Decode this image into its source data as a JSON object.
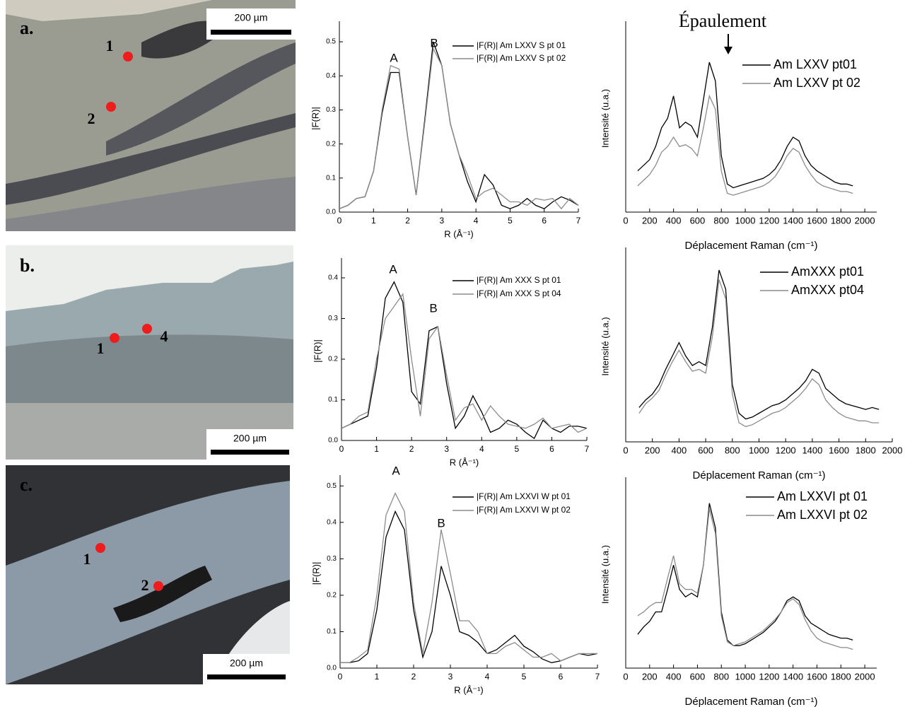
{
  "panels": [
    {
      "label": "a.",
      "scale": "200 µm",
      "points": [
        "1",
        "2"
      ]
    },
    {
      "label": "b.",
      "scale": "200 µm",
      "points": [
        "1",
        "4"
      ]
    },
    {
      "label": "c.",
      "scale": "200 µm",
      "points": [
        "1",
        "2"
      ]
    }
  ],
  "chart_data": [
    {
      "type": "line",
      "x_label": "R (Å⁻¹)",
      "y_label": "|F(R)|",
      "annotations": [
        "A",
        "B"
      ],
      "xlim": [
        0,
        7
      ],
      "xticks": [
        0,
        1,
        2,
        3,
        4,
        5,
        6,
        7
      ],
      "ylim": [
        0,
        0.55
      ],
      "yticks": [
        {
          "value": 0,
          "label": "0.0"
        },
        0.1,
        0.2,
        0.3,
        0.4,
        0.5
      ],
      "x": [
        0,
        0.25,
        0.5,
        0.75,
        1,
        1.25,
        1.5,
        1.75,
        2,
        2.25,
        2.5,
        2.75,
        3,
        3.25,
        3.5,
        3.75,
        4,
        4.25,
        4.5,
        4.75,
        5,
        5.25,
        5.5,
        5.75,
        6,
        6.25,
        6.5,
        6.75,
        7
      ],
      "series": [
        {
          "name": "|F(R)|  Am LXXV S pt 01",
          "color": "#000000",
          "values": [
            0.01,
            0.02,
            0.04,
            0.045,
            0.12,
            0.29,
            0.41,
            0.41,
            0.22,
            0.05,
            0.27,
            0.5,
            0.43,
            0.26,
            0.17,
            0.09,
            0.03,
            0.11,
            0.08,
            0.02,
            0.01,
            0.02,
            0.04,
            0.02,
            0.01,
            0.03,
            0.045,
            0.035,
            0.02
          ]
        },
        {
          "name": "|F(R)|  Am LXXV S pt 02",
          "color": "#8c8c8c",
          "values": [
            0.01,
            0.02,
            0.04,
            0.045,
            0.12,
            0.3,
            0.43,
            0.42,
            0.22,
            0.05,
            0.26,
            0.48,
            0.43,
            0.26,
            0.17,
            0.11,
            0.04,
            0.06,
            0.07,
            0.05,
            0.03,
            0.03,
            0.02,
            0.04,
            0.035,
            0.04,
            0.01,
            0.04,
            0.02
          ]
        }
      ]
    },
    {
      "type": "line",
      "x_label": "Déplacement Raman (cm⁻¹)",
      "y_label": "Intensité (u.a.)",
      "annotations": [
        "Épaulement"
      ],
      "xlim": [
        0,
        2100
      ],
      "xticks": [
        0,
        200,
        400,
        600,
        800,
        1000,
        1200,
        1400,
        1600,
        1800,
        2000
      ],
      "ylim": [
        0,
        100
      ],
      "x": [
        100,
        150,
        200,
        250,
        300,
        350,
        400,
        450,
        500,
        550,
        600,
        650,
        700,
        750,
        800,
        850,
        900,
        950,
        1000,
        1050,
        1100,
        1150,
        1200,
        1250,
        1300,
        1350,
        1400,
        1450,
        1500,
        1550,
        1600,
        1650,
        1700,
        1750,
        1800,
        1850,
        1900
      ],
      "series": [
        {
          "name": "Am LXXV pt01",
          "color": "#000000",
          "values": [
            22,
            25,
            28,
            35,
            45,
            50,
            62,
            45,
            48,
            46,
            40,
            60,
            80,
            70,
            30,
            15,
            13,
            14,
            15,
            16,
            17,
            18,
            20,
            23,
            28,
            35,
            40,
            38,
            30,
            25,
            22,
            20,
            18,
            16,
            15,
            15,
            14
          ]
        },
        {
          "name": "Am LXXV pt 02",
          "color": "#8c8c8c",
          "values": [
            14,
            17,
            20,
            25,
            32,
            35,
            40,
            35,
            36,
            34,
            30,
            45,
            62,
            55,
            22,
            10,
            9,
            10,
            11,
            12,
            13,
            14,
            16,
            19,
            24,
            30,
            34,
            32,
            25,
            20,
            16,
            14,
            13,
            12,
            11,
            11,
            10
          ]
        }
      ]
    },
    {
      "type": "line",
      "x_label": "R (Å⁻¹)",
      "y_label": "|F(R)|",
      "annotations": [
        "A",
        "B"
      ],
      "xlim": [
        0,
        7
      ],
      "xticks": [
        0,
        1,
        2,
        3,
        4,
        5,
        6,
        7
      ],
      "ylim": [
        0,
        0.44
      ],
      "yticks": [
        {
          "value": 0,
          "label": "0.0"
        },
        0.1,
        0.2,
        0.3,
        0.4
      ],
      "x": [
        0,
        0.25,
        0.5,
        0.75,
        1,
        1.25,
        1.5,
        1.75,
        2,
        2.25,
        2.5,
        2.75,
        3,
        3.25,
        3.5,
        3.75,
        4,
        4.25,
        4.5,
        4.75,
        5,
        5.25,
        5.5,
        5.75,
        6,
        6.25,
        6.5,
        6.75,
        7
      ],
      "series": [
        {
          "name": "|F(R)|  Am XXX S pt 01",
          "color": "#000000",
          "values": [
            0.03,
            0.04,
            0.05,
            0.06,
            0.18,
            0.35,
            0.39,
            0.34,
            0.12,
            0.09,
            0.27,
            0.28,
            0.14,
            0.03,
            0.06,
            0.11,
            0.07,
            0.02,
            0.03,
            0.05,
            0.04,
            0.02,
            0.005,
            0.05,
            0.03,
            0.02,
            0.035,
            0.035,
            0.03
          ]
        },
        {
          "name": "|F(R)|  Am XXX S pt 04",
          "color": "#8c8c8c",
          "values": [
            0.03,
            0.04,
            0.06,
            0.07,
            0.2,
            0.3,
            0.33,
            0.36,
            0.2,
            0.06,
            0.25,
            0.28,
            0.16,
            0.05,
            0.08,
            0.09,
            0.05,
            0.085,
            0.06,
            0.04,
            0.035,
            0.03,
            0.04,
            0.055,
            0.03,
            0.035,
            0.04,
            0.02,
            0.03
          ]
        }
      ]
    },
    {
      "type": "line",
      "x_label": "Déplacement Raman (cm⁻¹)",
      "y_label": "Intensité (u.a.)",
      "xlim": [
        0,
        2000
      ],
      "xticks": [
        0,
        200,
        400,
        600,
        800,
        1000,
        1200,
        1400,
        1600,
        1800,
        2000
      ],
      "ylim": [
        0,
        100
      ],
      "x": [
        100,
        150,
        200,
        250,
        300,
        350,
        400,
        450,
        500,
        550,
        600,
        650,
        700,
        750,
        800,
        850,
        900,
        950,
        1000,
        1050,
        1100,
        1150,
        1200,
        1250,
        1300,
        1350,
        1400,
        1450,
        1500,
        1550,
        1600,
        1650,
        1700,
        1750,
        1800,
        1850,
        1900
      ],
      "series": [
        {
          "name": "AmXXX pt01",
          "color": "#000000",
          "values": [
            18,
            22,
            25,
            30,
            38,
            45,
            52,
            45,
            40,
            42,
            40,
            60,
            90,
            80,
            30,
            15,
            12,
            13,
            15,
            17,
            19,
            20,
            22,
            25,
            28,
            32,
            38,
            36,
            28,
            25,
            22,
            20,
            19,
            18,
            17,
            18,
            17
          ]
        },
        {
          "name": "AmXXX pt04",
          "color": "#8c8c8c",
          "values": [
            15,
            20,
            23,
            27,
            35,
            42,
            48,
            42,
            37,
            38,
            36,
            55,
            85,
            75,
            25,
            10,
            8,
            9,
            11,
            13,
            15,
            16,
            18,
            21,
            24,
            28,
            33,
            30,
            22,
            18,
            15,
            13,
            12,
            11,
            11,
            10,
            10
          ]
        }
      ]
    },
    {
      "type": "line",
      "x_label": "R (Å⁻¹)",
      "y_label": "|F(R)|",
      "annotations": [
        "A",
        "B"
      ],
      "xlim": [
        0,
        7
      ],
      "xticks": [
        0,
        1,
        2,
        3,
        4,
        5,
        6,
        7
      ],
      "ylim": [
        0,
        0.52
      ],
      "yticks": [
        {
          "value": 0,
          "label": "0.0"
        },
        0.1,
        0.2,
        0.3,
        0.4,
        0.5
      ],
      "x": [
        0,
        0.25,
        0.5,
        0.75,
        1,
        1.25,
        1.5,
        1.75,
        2,
        2.25,
        2.5,
        2.75,
        3,
        3.25,
        3.5,
        3.75,
        4,
        4.25,
        4.5,
        4.75,
        5,
        5.25,
        5.5,
        5.75,
        6,
        6.25,
        6.5,
        6.75,
        7
      ],
      "series": [
        {
          "name": "|F(R)| Am LXXVI W pt 01",
          "color": "#000000",
          "values": [
            0.015,
            0.015,
            0.02,
            0.04,
            0.16,
            0.36,
            0.43,
            0.38,
            0.16,
            0.03,
            0.1,
            0.28,
            0.2,
            0.1,
            0.09,
            0.07,
            0.04,
            0.05,
            0.07,
            0.09,
            0.06,
            0.045,
            0.025,
            0.015,
            0.02,
            0.03,
            0.04,
            0.035,
            0.04
          ]
        },
        {
          "name": "|F(R)|  Am LXXVI W pt 02",
          "color": "#8c8c8c",
          "values": [
            0.015,
            0.015,
            0.03,
            0.05,
            0.2,
            0.42,
            0.48,
            0.43,
            0.18,
            0.04,
            0.18,
            0.38,
            0.26,
            0.13,
            0.13,
            0.1,
            0.04,
            0.04,
            0.06,
            0.07,
            0.05,
            0.03,
            0.03,
            0.04,
            0.02,
            0.03,
            0.04,
            0.04,
            0.04
          ]
        }
      ]
    },
    {
      "type": "line",
      "x_label": "Déplacement Raman (cm⁻¹)",
      "y_label": "Intensité (u.a.)",
      "xlim": [
        0,
        2100
      ],
      "xticks": [
        0,
        200,
        400,
        600,
        800,
        1000,
        1200,
        1400,
        1600,
        1800,
        2000
      ],
      "ylim": [
        0,
        100
      ],
      "x": [
        100,
        150,
        200,
        250,
        300,
        350,
        400,
        450,
        500,
        550,
        600,
        650,
        700,
        750,
        800,
        850,
        900,
        950,
        1000,
        1050,
        1100,
        1150,
        1200,
        1250,
        1300,
        1350,
        1400,
        1450,
        1500,
        1550,
        1600,
        1650,
        1700,
        1750,
        1800,
        1850,
        1900
      ],
      "series": [
        {
          "name": "Am LXXVI pt 01",
          "color": "#000000",
          "values": [
            18,
            22,
            25,
            30,
            30,
            42,
            55,
            42,
            38,
            40,
            38,
            55,
            88,
            75,
            30,
            15,
            12,
            12,
            13,
            15,
            17,
            19,
            22,
            25,
            30,
            36,
            38,
            36,
            28,
            24,
            22,
            20,
            18,
            17,
            16,
            16,
            15
          ]
        },
        {
          "name": "Am LXXVI pt 02",
          "color": "#8c8c8c",
          "values": [
            28,
            30,
            33,
            35,
            35,
            48,
            60,
            45,
            42,
            42,
            40,
            55,
            85,
            72,
            28,
            14,
            12,
            13,
            14,
            16,
            18,
            20,
            23,
            26,
            30,
            35,
            37,
            34,
            26,
            20,
            16,
            14,
            13,
            12,
            11,
            11,
            10
          ]
        }
      ]
    }
  ]
}
